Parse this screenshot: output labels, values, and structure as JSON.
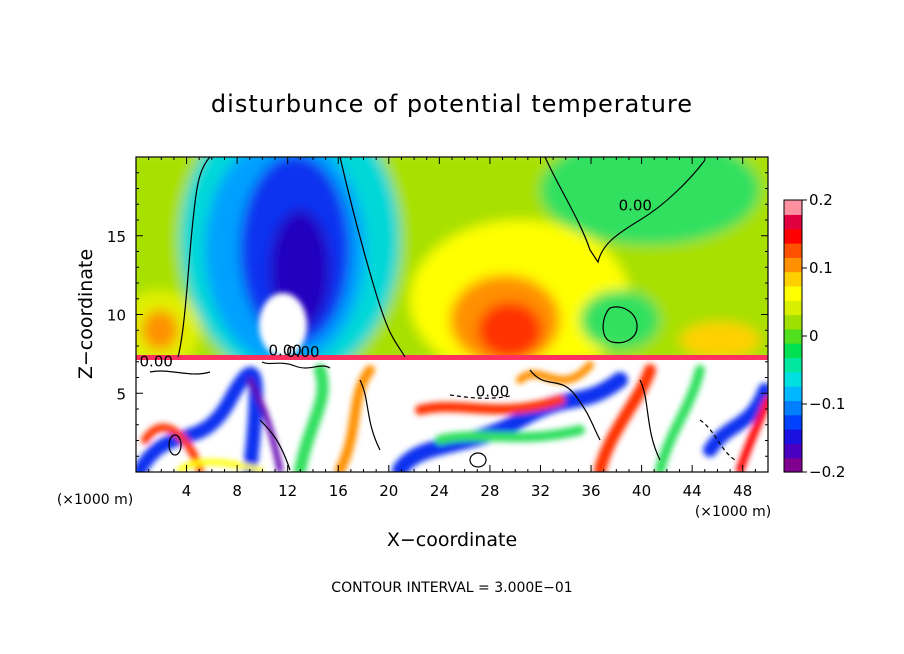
{
  "chart_data": {
    "type": "heatmap",
    "title": "disturbunce of potential temperature",
    "xlabel": "X−coordinate",
    "ylabel": "Z−coordinate",
    "x_unit": "(×1000 m)",
    "z_unit": "(×1000 m)",
    "footer": "CONTOUR INTERVAL = 3.000E−01",
    "xlim": [
      0,
      50
    ],
    "zlim": [
      0,
      20
    ],
    "x_ticks": [
      4,
      8,
      12,
      16,
      20,
      24,
      28,
      32,
      36,
      40,
      44,
      48
    ],
    "x_tick_labels": [
      "4",
      "8",
      "12",
      "16",
      "20",
      "24",
      "28",
      "32",
      "36",
      "40",
      "44",
      "48"
    ],
    "z_ticks": [
      5,
      10,
      15
    ],
    "z_tick_labels": [
      "5",
      "10",
      "15"
    ],
    "colorbar": {
      "range": [
        -0.2,
        0.2
      ],
      "ticks": [
        0.2,
        0.1,
        0,
        -0.1,
        -0.2
      ],
      "tick_labels": [
        "0.2",
        "0.1",
        "0",
        "−0.1",
        "−0.2"
      ],
      "colors": [
        "#800090",
        "#4a00c0",
        "#1a10e0",
        "#0040ff",
        "#0080ff",
        "#00b8ff",
        "#00e0e0",
        "#00e8a0",
        "#00e050",
        "#50e020",
        "#a0e000",
        "#d8f000",
        "#ffff00",
        "#ffd000",
        "#ff9000",
        "#ff5000",
        "#ff0000",
        "#e00040",
        "#ff90a0"
      ]
    },
    "contour_labels": [
      {
        "text": "0.00",
        "x": 39.5,
        "z": 16.6
      },
      {
        "text": "0.00",
        "x": 11.8,
        "z": 7.4
      },
      {
        "text": "0.00",
        "x": 13.2,
        "z": 7.3
      },
      {
        "text": "0.00",
        "x": 1.6,
        "z": 6.7
      },
      {
        "text": "0.00",
        "x": 28.2,
        "z": 4.8
      }
    ]
  }
}
